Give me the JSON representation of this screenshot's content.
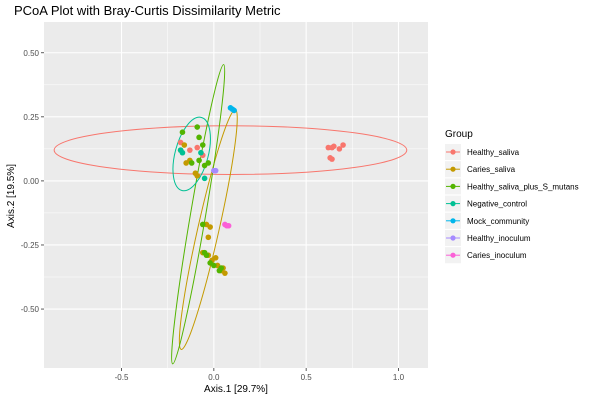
{
  "chart_data": {
    "type": "scatter",
    "title": "PCoA Plot with Bray-Curtis Dissimilarity Metric",
    "xlabel": "Axis.1   [29.7%]",
    "ylabel": "Axis.2   [19.5%]",
    "xlim": [
      -0.92,
      1.16
    ],
    "ylim": [
      -0.73,
      0.62
    ],
    "xticks": [
      -0.5,
      0.0,
      0.5,
      1.0
    ],
    "xtick_labels": [
      "-0.5",
      "0.0",
      "0.5",
      "1.0"
    ],
    "yticks": [
      -0.5,
      -0.25,
      0.0,
      0.25,
      0.5
    ],
    "ytick_labels": [
      "-0.50",
      "-0.25",
      "0.00",
      "0.25",
      "0.50"
    ],
    "grid": true,
    "legend": {
      "title": "Group",
      "position": "right"
    },
    "series": [
      {
        "name": "Healthy_saliva",
        "color": "#F8766D",
        "points": [
          [
            0.62,
            0.13
          ],
          [
            0.64,
            0.13
          ],
          [
            0.65,
            0.135
          ],
          [
            0.68,
            0.125
          ],
          [
            0.7,
            0.14
          ],
          [
            0.63,
            0.09
          ],
          [
            0.64,
            0.085
          ],
          [
            -0.18,
            0.15
          ],
          [
            -0.13,
            0.12
          ],
          [
            -0.09,
            0.13
          ],
          [
            -0.06,
            0.1
          ]
        ],
        "ellipse": {
          "cx": 0.09,
          "cy": 0.12,
          "rx": 0.955,
          "ry": 0.095,
          "angle_deg": 0
        }
      },
      {
        "name": "Caries_saliva",
        "color": "#C49A00",
        "points": [
          [
            -0.18,
            0.12
          ],
          [
            -0.16,
            0.14
          ],
          [
            -0.15,
            0.07
          ],
          [
            -0.13,
            0.08
          ],
          [
            -0.1,
            0.03
          ],
          [
            -0.09,
            0.02
          ],
          [
            -0.04,
            -0.17
          ],
          [
            -0.02,
            -0.18
          ],
          [
            -0.03,
            -0.22
          ],
          [
            -0.06,
            -0.28
          ],
          [
            -0.03,
            -0.29
          ],
          [
            -0.01,
            -0.31
          ],
          [
            0.01,
            -0.3
          ],
          [
            0.02,
            -0.33
          ],
          [
            0.05,
            -0.34
          ],
          [
            0.06,
            -0.36
          ],
          [
            0.04,
            -0.35
          ]
        ],
        "ellipse": {
          "cx": -0.03,
          "cy": -0.19,
          "rx": 0.49,
          "ry": 0.055,
          "angle_deg": 72.6
        }
      },
      {
        "name": "Healthy_saliva_plus_S_mutans",
        "color": "#53B400",
        "points": [
          [
            -0.17,
            0.19
          ],
          [
            -0.09,
            0.21
          ],
          [
            -0.08,
            0.17
          ],
          [
            -0.06,
            0.14
          ],
          [
            -0.12,
            0.07
          ],
          [
            -0.08,
            0.08
          ],
          [
            -0.05,
            0.06
          ],
          [
            -0.03,
            0.07
          ],
          [
            -0.06,
            -0.17
          ],
          [
            -0.05,
            -0.28
          ],
          [
            -0.04,
            -0.29
          ],
          [
            -0.02,
            -0.32
          ],
          [
            0.0,
            -0.33
          ],
          [
            0.04,
            -0.34
          ],
          [
            0.03,
            -0.35
          ]
        ],
        "ellipse": {
          "cx": -0.085,
          "cy": -0.13,
          "rx": 0.6,
          "ry": 0.04,
          "angle_deg": 76.7
        }
      },
      {
        "name": "Negative_control",
        "color": "#00C094",
        "points": [
          [
            -0.18,
            0.12
          ],
          [
            -0.17,
            0.11
          ],
          [
            -0.05,
            0.01
          ],
          [
            -0.07,
            0.11
          ]
        ],
        "ellipse": {
          "cx": -0.12,
          "cy": 0.105,
          "rx": 0.152,
          "ry": 0.085,
          "angle_deg": 69.7
        }
      },
      {
        "name": "Mock_community",
        "color": "#00B6EB",
        "points": [
          [
            0.09,
            0.285
          ],
          [
            0.1,
            0.28
          ],
          [
            0.11,
            0.275
          ]
        ]
      },
      {
        "name": "Healthy_inoculum",
        "color": "#A58AFF",
        "points": [
          [
            0.0,
            0.04
          ],
          [
            0.01,
            0.04
          ]
        ]
      },
      {
        "name": "Caries_inoculum",
        "color": "#FB61D7",
        "points": [
          [
            0.06,
            -0.17
          ],
          [
            0.07,
            -0.175
          ],
          [
            0.08,
            -0.175
          ]
        ]
      }
    ]
  }
}
